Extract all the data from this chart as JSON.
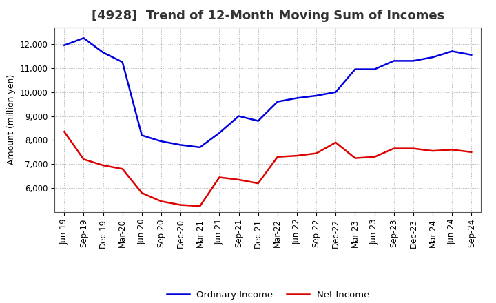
{
  "title": "[4928]  Trend of 12-Month Moving Sum of Incomes",
  "ylabel": "Amount (million yen)",
  "xlabels": [
    "Jun-19",
    "Sep-19",
    "Dec-19",
    "Mar-20",
    "Jun-20",
    "Sep-20",
    "Dec-20",
    "Mar-21",
    "Jun-21",
    "Sep-21",
    "Dec-21",
    "Mar-22",
    "Jun-22",
    "Sep-22",
    "Dec-22",
    "Mar-23",
    "Jun-23",
    "Sep-23",
    "Dec-23",
    "Mar-24",
    "Jun-24",
    "Sep-24"
  ],
  "ordinary_income": [
    11950,
    12250,
    11650,
    11250,
    8200,
    7950,
    7800,
    7700,
    8300,
    9000,
    8800,
    9600,
    9750,
    9850,
    10000,
    10950,
    10950,
    11300,
    11300,
    11450,
    11700,
    11550
  ],
  "net_income": [
    8350,
    7200,
    6950,
    6800,
    5800,
    5450,
    5300,
    5250,
    6450,
    6350,
    6200,
    7300,
    7350,
    7450,
    7900,
    7250,
    7300,
    7650,
    7650,
    7550,
    7600,
    7500
  ],
  "ordinary_color": "#0000dd",
  "net_color": "#dd0000",
  "ylim_min": 5000,
  "ylim_max": 12700,
  "yticks": [
    6000,
    7000,
    8000,
    9000,
    10000,
    11000,
    12000
  ],
  "background_color": "#ffffff",
  "grid_color": "#aaaaaa",
  "title_fontsize": 13,
  "axis_label_fontsize": 9,
  "tick_fontsize": 8.5,
  "legend_fontsize": 9.5,
  "line_width": 1.8
}
